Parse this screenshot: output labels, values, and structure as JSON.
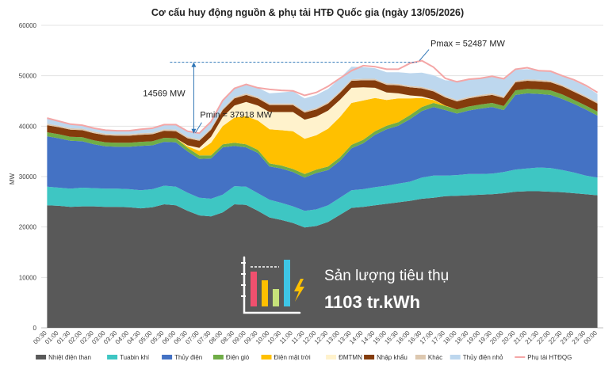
{
  "chart_data": {
    "type": "area",
    "stacked": true,
    "title": "Cơ cấu huy động nguồn & phụ tải HTĐ Quốc gia (ngày 13/05/2026)",
    "ylabel": "MW",
    "ylim": [
      0,
      60000
    ],
    "yticks": [
      0,
      10000,
      20000,
      30000,
      40000,
      50000,
      60000
    ],
    "x": [
      "00:30",
      "01:00",
      "01:30",
      "02:00",
      "02:30",
      "03:00",
      "03:30",
      "04:00",
      "04:30",
      "05:00",
      "05:30",
      "06:00",
      "06:30",
      "07:00",
      "07:30",
      "08:00",
      "08:30",
      "09:00",
      "09:30",
      "10:00",
      "10:30",
      "11:00",
      "11:30",
      "12:00",
      "12:30",
      "13:00",
      "13:30",
      "14:00",
      "14:30",
      "15:00",
      "15:30",
      "16:00",
      "16:30",
      "17:00",
      "17:30",
      "18:00",
      "18:30",
      "19:00",
      "19:30",
      "20:00",
      "20:30",
      "21:00",
      "21:30",
      "22:00",
      "22:30",
      "23:00",
      "23:30",
      "00:00"
    ],
    "series": [
      {
        "name": "Nhiệt điện than",
        "color": "#595959",
        "values": [
          24300,
          24200,
          24000,
          24100,
          24100,
          24000,
          24000,
          23900,
          23700,
          23900,
          24500,
          24300,
          23200,
          22300,
          22100,
          22900,
          24500,
          24400,
          23200,
          21900,
          21400,
          20800,
          19900,
          20200,
          21000,
          22400,
          23800,
          24000,
          24300,
          24600,
          24900,
          25200,
          25600,
          25800,
          26100,
          26200,
          26300,
          26400,
          26500,
          26700,
          27000,
          27100,
          27100,
          27000,
          26900,
          26700,
          26500,
          26300
        ]
      },
      {
        "name": "Tuabin khí",
        "color": "#3ec6c3",
        "values": [
          3700,
          3600,
          3600,
          3700,
          3600,
          3600,
          3600,
          3600,
          3600,
          3600,
          3700,
          3700,
          3600,
          3500,
          3500,
          3500,
          3600,
          3600,
          3500,
          3500,
          3400,
          3300,
          3300,
          3300,
          3300,
          3400,
          3500,
          3500,
          3600,
          3600,
          3700,
          3800,
          4200,
          4400,
          4100,
          4100,
          4200,
          4100,
          4100,
          4200,
          4400,
          4500,
          4700,
          4700,
          4400,
          4100,
          3700,
          3500
        ]
      },
      {
        "name": "Thủy điện",
        "color": "#4472c4",
        "values": [
          10000,
          9800,
          9500,
          9200,
          8700,
          8400,
          8300,
          8400,
          8800,
          8700,
          8700,
          8800,
          8200,
          7700,
          8000,
          9400,
          8000,
          7800,
          8000,
          6600,
          6800,
          6800,
          6600,
          7200,
          7000,
          7300,
          8300,
          9100,
          10400,
          11200,
          11500,
          12400,
          13200,
          13600,
          13000,
          12200,
          12600,
          13000,
          13200,
          12300,
          14800,
          14900,
          14600,
          14500,
          14100,
          13600,
          13100,
          12300
        ]
      },
      {
        "name": "Điện gió",
        "color": "#70ad47",
        "values": [
          800,
          800,
          800,
          800,
          800,
          800,
          800,
          800,
          800,
          800,
          800,
          800,
          700,
          700,
          600,
          600,
          600,
          600,
          600,
          600,
          600,
          600,
          700,
          700,
          700,
          700,
          700,
          700,
          700,
          700,
          700,
          800,
          800,
          800,
          800,
          800,
          800,
          800,
          800,
          800,
          900,
          900,
          900,
          900,
          900,
          800,
          800,
          800
        ]
      },
      {
        "name": "Điện mặt trời",
        "color": "#ffc000",
        "values": [
          0,
          0,
          0,
          0,
          0,
          0,
          0,
          0,
          0,
          0,
          0,
          0,
          300,
          900,
          2500,
          3600,
          5000,
          5600,
          5800,
          6800,
          7000,
          7500,
          7000,
          6800,
          7500,
          8000,
          8300,
          7800,
          6600,
          5100,
          4700,
          3300,
          1800,
          600,
          100,
          0,
          0,
          0,
          0,
          0,
          0,
          0,
          0,
          0,
          0,
          0,
          0,
          0
        ]
      },
      {
        "name": "ĐMTMN",
        "color": "#fff2cc",
        "values": [
          0,
          0,
          0,
          0,
          0,
          0,
          0,
          0,
          0,
          0,
          0,
          0,
          200,
          600,
          1200,
          1800,
          2400,
          2800,
          3000,
          3400,
          3600,
          3800,
          3800,
          3700,
          3600,
          3400,
          3000,
          2600,
          2000,
          1500,
          1000,
          600,
          300,
          100,
          0,
          0,
          0,
          0,
          0,
          0,
          0,
          0,
          0,
          0,
          0,
          0,
          0,
          0
        ]
      },
      {
        "name": "Nhập khẩu",
        "color": "#843c0c",
        "values": [
          1400,
          1400,
          1400,
          1400,
          1400,
          1400,
          1400,
          1400,
          1400,
          1400,
          1400,
          1400,
          1400,
          1400,
          1400,
          1400,
          1400,
          1400,
          1400,
          1400,
          1400,
          1400,
          1400,
          1400,
          1400,
          1400,
          1400,
          1400,
          1500,
          1500,
          1600,
          1600,
          1600,
          1600,
          1600,
          1600,
          1600,
          1600,
          1600,
          1600,
          1600,
          1600,
          1600,
          1600,
          1600,
          1600,
          1600,
          1600
        ]
      },
      {
        "name": "Khác",
        "color": "#ddc8b0",
        "values": [
          300,
          300,
          300,
          300,
          300,
          300,
          300,
          300,
          300,
          300,
          300,
          300,
          300,
          300,
          300,
          300,
          300,
          300,
          300,
          300,
          300,
          300,
          300,
          300,
          300,
          300,
          300,
          300,
          300,
          300,
          300,
          300,
          300,
          300,
          300,
          300,
          300,
          300,
          300,
          300,
          300,
          300,
          300,
          300,
          300,
          300,
          300,
          300
        ]
      },
      {
        "name": "Thủy điện nhỏ",
        "color": "#bdd7ee",
        "values": [
          1100,
          900,
          800,
          700,
          700,
          700,
          700,
          700,
          800,
          900,
          900,
          1000,
          1100,
          1200,
          1300,
          1600,
          1700,
          1800,
          1800,
          2000,
          2200,
          2400,
          2500,
          2600,
          2600,
          2600,
          2500,
          2300,
          2100,
          2200,
          2300,
          2500,
          2800,
          2900,
          3100,
          3800,
          3600,
          3400,
          3500,
          3300,
          2200,
          2000,
          1900,
          1900,
          1900,
          1900,
          1900,
          1600
        ]
      }
    ],
    "load": {
      "name": "Phụ tải HTĐQG",
      "color": "#f4a6a6",
      "values": [
        41600,
        41000,
        40400,
        40200,
        39600,
        39200,
        39100,
        39100,
        39400,
        39600,
        40300,
        40300,
        39000,
        38600,
        40900,
        45100,
        47500,
        48300,
        47600,
        47300,
        47100,
        47000,
        46100,
        46700,
        47900,
        49500,
        51000,
        52000,
        51800,
        51300,
        51300,
        52500,
        53000,
        51700,
        49500,
        48800,
        49300,
        49500,
        49900,
        49400,
        51300,
        51600,
        51000,
        50900,
        50000,
        49200,
        48100,
        46700
      ]
    },
    "annotations": {
      "pmax": "Pmax = 52487 MW",
      "pmin": "Pmin = 37918 MW",
      "diff": "14569 MW"
    },
    "legend_position": "bottom"
  },
  "info_box": {
    "label": "Sản lượng tiêu thụ",
    "value": "1103 tr.kWh",
    "icon": "bar-chart-lightning-icon"
  }
}
